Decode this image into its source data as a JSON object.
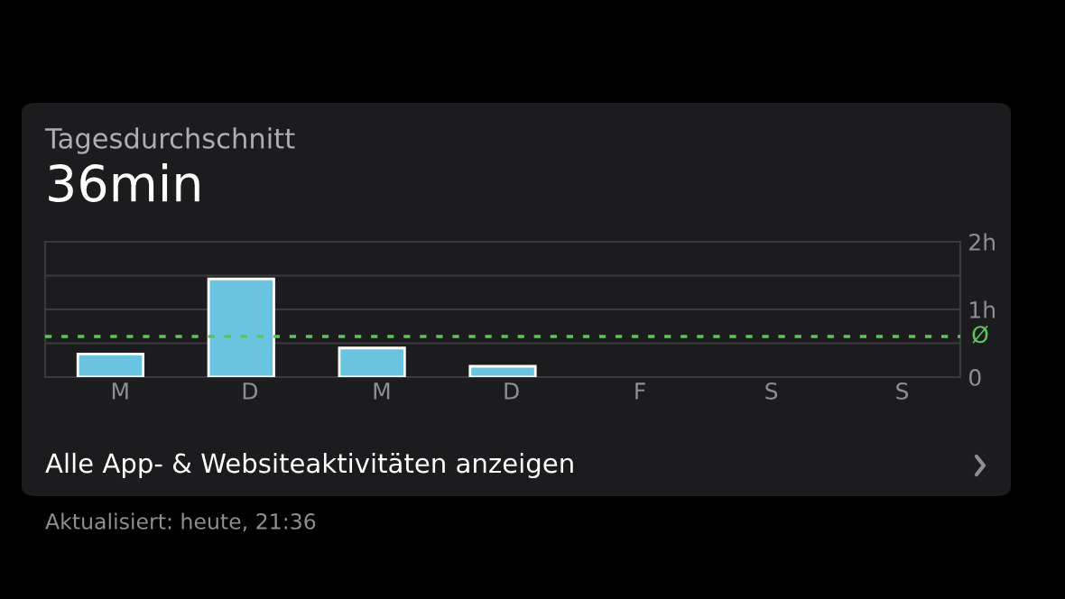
{
  "chart_data": {
    "type": "bar",
    "title": "Tagesdurchschnitt",
    "subtitle": "36min",
    "categories": [
      "M",
      "D",
      "M",
      "D",
      "F",
      "S",
      "S"
    ],
    "values": [
      0.34,
      1.45,
      0.43,
      0.16,
      null,
      null,
      null
    ],
    "color": "#6ac4df",
    "ylim": [
      0,
      2
    ],
    "yticks": [
      {
        "value": 0,
        "label": "0"
      },
      {
        "value": 0.5,
        "label": null
      },
      {
        "value": 1,
        "label": "1h"
      },
      {
        "value": 1.5,
        "label": null
      },
      {
        "value": 2,
        "label": "2h"
      }
    ],
    "grid": "y",
    "ref_lines": [
      {
        "axis": "y",
        "value": 0.6,
        "label": "Ø",
        "color": "#5cc45a",
        "line_style": "dotted"
      }
    ],
    "annotations": [
      "Alle App- & Websiteaktivitäten anzeigen",
      "Aktualisiert: heute, 21:36"
    ]
  }
}
